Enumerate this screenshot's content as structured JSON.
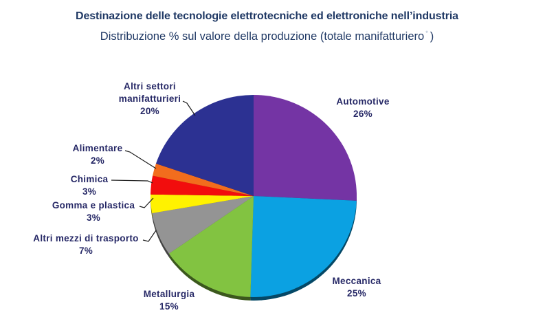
{
  "header": {
    "title": "Destinazione delle tecnologie elettrotecniche ed elettroniche nell’industria",
    "subtitle": "Distribuzione % sul valore della produzione (totale manifatturiero",
    "footnote_mark": "*",
    "subtitle_close": ")"
  },
  "colors": {
    "title_text": "#1F3864",
    "label_text": "#262866",
    "leader_line": "#1A1A1A",
    "background": "#FFFFFF"
  },
  "chart_data": {
    "type": "pie",
    "title": "Destinazione delle tecnologie elettrotecniche ed elettroniche nell’industria",
    "subtitle": "Distribuzione % sul valore della produzione (totale manifatturiero*)",
    "direction": "clockwise",
    "start_angle_deg": 0,
    "legend": "none",
    "effect_3d": true,
    "label_format": "name + percent",
    "slices": [
      {
        "label": "Automotive",
        "label_lines": [
          "Automotive"
        ],
        "value": 26,
        "percent_label": "26%",
        "color": "#7434A4"
      },
      {
        "label": "Meccanica",
        "label_lines": [
          "Meccanica"
        ],
        "value": 25,
        "percent_label": "25%",
        "color": "#0BA1E2"
      },
      {
        "label": "Metallurgia",
        "label_lines": [
          "Metallurgia"
        ],
        "value": 15,
        "percent_label": "15%",
        "color": "#82C341"
      },
      {
        "label": "Altri mezzi di trasporto",
        "label_lines": [
          "Altri mezzi di trasporto"
        ],
        "value": 7,
        "percent_label": "7%",
        "color": "#949494"
      },
      {
        "label": "Gomma e plastica",
        "label_lines": [
          "Gomma e plastica"
        ],
        "value": 3,
        "percent_label": "3%",
        "color": "#FFF200"
      },
      {
        "label": "Chimica",
        "label_lines": [
          "Chimica"
        ],
        "value": 3,
        "percent_label": "3%",
        "color": "#F20D0D"
      },
      {
        "label": "Alimentare",
        "label_lines": [
          "Alimentare"
        ],
        "value": 2,
        "percent_label": "2%",
        "color": "#F26D1D"
      },
      {
        "label": "Altri settori manifatturieri",
        "label_lines": [
          "Altri settori",
          "manifatturieri"
        ],
        "value": 20,
        "percent_label": "20%",
        "color": "#2C3192"
      }
    ]
  }
}
